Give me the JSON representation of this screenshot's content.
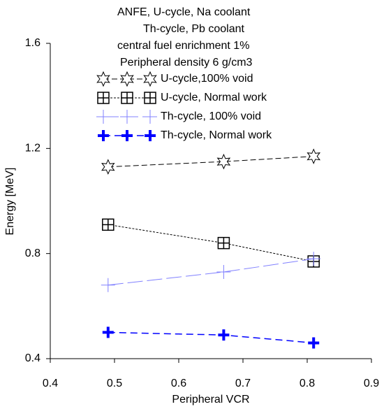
{
  "chart_data": {
    "type": "line",
    "annotations": [
      "ANFE, U-cycle, Na coolant",
      "Th-cycle, Pb coolant",
      "central fuel enrichment 1%",
      "Peripheral density 6 g/cm3"
    ],
    "x_label": "Peripheral VCR",
    "y_label": "Energy [MeV]",
    "x": [
      0.49,
      0.67,
      0.81
    ],
    "series": [
      {
        "name": "U-cycle,100% void",
        "color": "#000000",
        "marker": "star",
        "dash": "8,4",
        "values": [
          1.13,
          1.15,
          1.17
        ]
      },
      {
        "name": "U-cycle, Normal work",
        "color": "#000000",
        "marker": "boxplus",
        "dash": "3,2",
        "values": [
          0.91,
          0.84,
          0.77
        ]
      },
      {
        "name": "Th-cycle, 100% void",
        "color": "#8080ff",
        "marker": "thinplus",
        "dash": "22,6",
        "values": [
          0.68,
          0.73,
          0.78
        ]
      },
      {
        "name": "Th-cycle, Normal work",
        "color": "#0000ff",
        "marker": "boldplus",
        "dash": "10,6",
        "values": [
          0.5,
          0.49,
          0.46
        ]
      }
    ],
    "xlim": [
      0.4,
      0.9
    ],
    "xticks": [
      0.4,
      0.5,
      0.6,
      0.7,
      0.8,
      0.9
    ],
    "ylim": [
      0.4,
      1.6
    ],
    "yticks": [
      0.4,
      0.8,
      1.2,
      1.6
    ],
    "legend": "top"
  }
}
